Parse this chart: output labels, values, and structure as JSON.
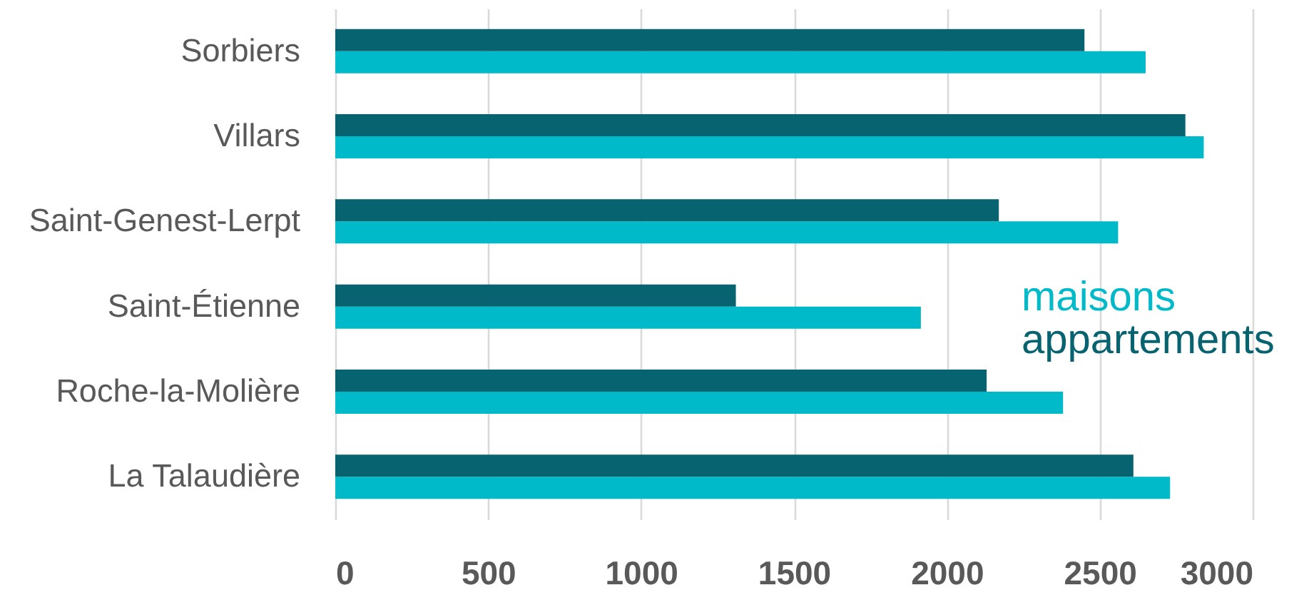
{
  "chart_data": {
    "type": "bar",
    "orientation": "horizontal",
    "categories": [
      "Sorbiers",
      "Villars",
      "Saint-Genest-Lerpt",
      "Saint-Étienne",
      "Roche-la-Molière",
      "La Talaudière"
    ],
    "series": [
      {
        "name": "maisons",
        "color": "#00b9c9",
        "values": [
          2650,
          2840,
          2560,
          1915,
          2380,
          2730
        ]
      },
      {
        "name": "appartements",
        "color": "#06636f",
        "values": [
          2450,
          2780,
          2170,
          1310,
          2130,
          2610
        ]
      }
    ],
    "xlim": [
      0,
      3000
    ],
    "xticks": [
      0,
      500,
      1000,
      1500,
      2000,
      2500,
      3000
    ],
    "grid": "x",
    "legend": "right"
  }
}
